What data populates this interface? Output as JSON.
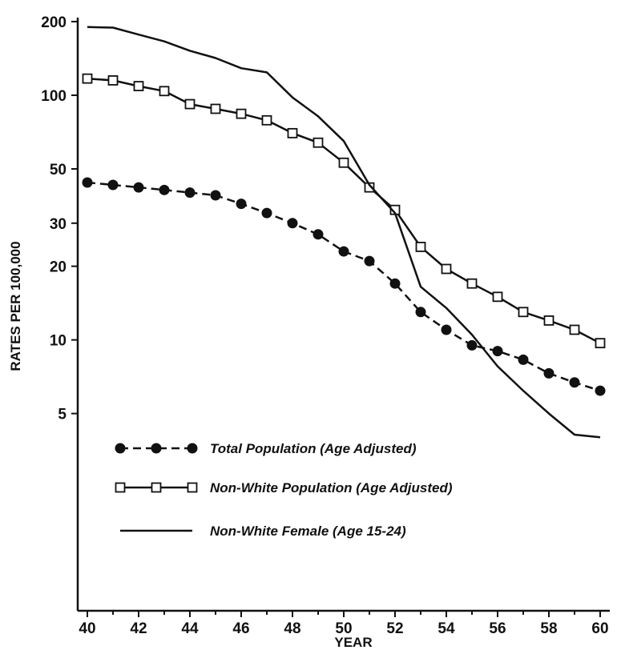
{
  "chart_data": {
    "type": "line",
    "title": "",
    "xlabel": "YEAR",
    "ylabel": "RATES PER 100,000",
    "y_scale": "log",
    "xlim": [
      40,
      60
    ],
    "ylim": [
      1,
      200
    ],
    "grid": false,
    "legend_placement": "bottom-left (inside plot)",
    "x_ticks": [
      40,
      42,
      44,
      46,
      48,
      50,
      52,
      54,
      56,
      58,
      60
    ],
    "y_ticks": [
      5,
      10,
      20,
      30,
      50,
      100,
      200
    ],
    "x": [
      40,
      41,
      42,
      43,
      44,
      45,
      46,
      47,
      48,
      49,
      50,
      51,
      52,
      53,
      54,
      55,
      56,
      57,
      58,
      59,
      60
    ],
    "series": [
      {
        "name": "Total Population (Age Adjusted)",
        "marker": "filled-circle",
        "line": "dashed",
        "values": [
          44,
          43,
          42,
          41,
          40,
          39,
          36,
          33,
          30,
          27,
          23,
          21,
          17,
          13,
          11,
          9.5,
          9,
          8.3,
          7.3,
          6.7,
          6.2
        ]
      },
      {
        "name": "Non-White Population (Age Adjusted)",
        "marker": "open-square",
        "line": "solid",
        "values": [
          117,
          115,
          109,
          104,
          92,
          88,
          84,
          79,
          70,
          64,
          53,
          42,
          34,
          24,
          19.5,
          17,
          15,
          13,
          12,
          11,
          9.7
        ]
      },
      {
        "name": "Non-White Female (Age 15-24)",
        "marker": "none",
        "line": "solid",
        "values": [
          190,
          189,
          177,
          166,
          152,
          142,
          129,
          124,
          98,
          82,
          65,
          43,
          33,
          16.5,
          13.5,
          10.5,
          7.8,
          6.2,
          5,
          4.1,
          4
        ]
      }
    ]
  },
  "colors": {
    "ink": "#111111",
    "background": "#ffffff"
  }
}
